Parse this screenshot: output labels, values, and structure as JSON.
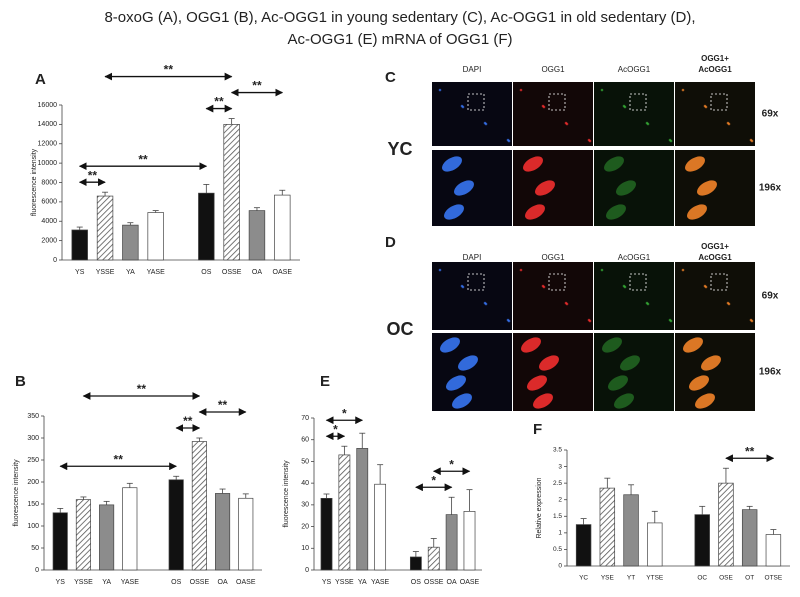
{
  "title_lines": [
    "8-oxoG (A), OGG1 (B), Ac-OGG1 in young sedentary (C), Ac-OGG1 in old sedentary (D),",
    "Ac-OGG1 (E) mRNA of OGG1 (F)"
  ],
  "chart_data": [
    {
      "type": "bar",
      "panel_label": "A",
      "ylabel": "fluorescence intensity",
      "categories": [
        "YS",
        "YSSE",
        "YA",
        "YASE",
        "OS",
        "OSSE",
        "OA",
        "OASE"
      ],
      "values": [
        3100,
        6600,
        3600,
        4900,
        6900,
        14000,
        5100,
        6700
      ],
      "errors": [
        300,
        400,
        250,
        200,
        900,
        600,
        300,
        500
      ],
      "colors": [
        "#111111",
        "#ffffff",
        "#8c8c8c",
        "#ffffff",
        "#111111",
        "#ffffff",
        "#8c8c8c",
        "#ffffff"
      ],
      "hatched": [
        false,
        true,
        false,
        false,
        false,
        true,
        false,
        false
      ],
      "ylim": [
        0,
        16000
      ],
      "yticks": [
        0,
        2000,
        4000,
        6000,
        8000,
        10000,
        12000,
        14000,
        16000
      ],
      "annotations": [
        {
          "text": "**",
          "between": [
            "YS",
            "YSSE"
          ]
        },
        {
          "text": "**",
          "between": [
            "YS",
            "OS"
          ]
        },
        {
          "text": "**",
          "between": [
            "OS",
            "OSSE"
          ]
        },
        {
          "text": "**",
          "between": [
            "OSSE",
            "OASE"
          ]
        },
        {
          "text": "**",
          "between": [
            "YSSE",
            "OSSE"
          ]
        }
      ]
    },
    {
      "type": "bar",
      "panel_label": "B",
      "ylabel": "fluorescence intensity",
      "categories": [
        "YS",
        "YSSE",
        "YA",
        "YASE",
        "OS",
        "OSSE",
        "OA",
        "OASE"
      ],
      "values": [
        130,
        160,
        148,
        187,
        205,
        292,
        174,
        163
      ],
      "errors": [
        10,
        6,
        8,
        10,
        8,
        8,
        10,
        10
      ],
      "colors": [
        "#111111",
        "#ffffff",
        "#8c8c8c",
        "#ffffff",
        "#111111",
        "#ffffff",
        "#8c8c8c",
        "#ffffff"
      ],
      "hatched": [
        false,
        true,
        false,
        false,
        false,
        true,
        false,
        false
      ],
      "ylim": [
        0,
        350
      ],
      "yticks": [
        0,
        50,
        100,
        150,
        200,
        250,
        300,
        350
      ],
      "annotations": [
        {
          "text": "**",
          "between": [
            "YS",
            "OS"
          ]
        },
        {
          "text": "**",
          "between": [
            "OS",
            "OSSE"
          ]
        },
        {
          "text": "**",
          "between": [
            "OSSE",
            "OASE"
          ]
        },
        {
          "text": "**",
          "between": [
            "YSSE",
            "OSSE"
          ]
        }
      ]
    },
    {
      "type": "bar",
      "panel_label": "E",
      "ylabel": "fluorescence intensity",
      "categories": [
        "YS",
        "YSSE",
        "YA",
        "YASE",
        "OS",
        "OSSE",
        "OA",
        "OASE"
      ],
      "values": [
        33,
        53,
        56,
        39.5,
        6,
        10.5,
        25.5,
        27
      ],
      "errors": [
        2,
        4,
        7,
        9,
        2.5,
        4,
        8,
        10
      ],
      "colors": [
        "#111111",
        "#ffffff",
        "#8c8c8c",
        "#ffffff",
        "#111111",
        "#ffffff",
        "#8c8c8c",
        "#ffffff"
      ],
      "hatched": [
        false,
        true,
        false,
        false,
        false,
        true,
        false,
        false
      ],
      "ylim": [
        0,
        70
      ],
      "yticks": [
        0,
        10,
        20,
        30,
        40,
        50,
        60,
        70
      ],
      "annotations": [
        {
          "text": "*",
          "between": [
            "YS",
            "YSSE"
          ]
        },
        {
          "text": "*",
          "between": [
            "YS",
            "YA"
          ]
        },
        {
          "text": "*",
          "between": [
            "OS",
            "OA"
          ]
        },
        {
          "text": "*",
          "between": [
            "OSSE",
            "OASE"
          ]
        }
      ]
    },
    {
      "type": "bar",
      "panel_label": "F",
      "ylabel": "Relative expression",
      "categories": [
        "YC",
        "YSE",
        "YT",
        "YTSE",
        "OC",
        "OSE",
        "OT",
        "OTSE"
      ],
      "values": [
        1.25,
        2.35,
        2.15,
        1.3,
        1.55,
        2.5,
        1.7,
        0.95
      ],
      "errors": [
        0.18,
        0.3,
        0.3,
        0.35,
        0.25,
        0.45,
        0.1,
        0.15
      ],
      "colors": [
        "#111111",
        "#ffffff",
        "#8c8c8c",
        "#ffffff",
        "#111111",
        "#ffffff",
        "#8c8c8c",
        "#ffffff"
      ],
      "hatched": [
        false,
        true,
        false,
        false,
        false,
        true,
        false,
        false
      ],
      "ylim": [
        0,
        3.5
      ],
      "yticks": [
        0,
        0.5,
        1,
        1.5,
        2,
        2.5,
        3,
        3.5
      ],
      "annotations": [
        {
          "text": "**",
          "between": [
            "OSE",
            "OTSE"
          ]
        }
      ]
    }
  ],
  "micrographs": [
    {
      "panel_label": "C",
      "group": "YC",
      "columns": [
        [
          "DAPI"
        ],
        [
          "OGG1"
        ],
        [
          "AcOGG1"
        ],
        [
          "OGG1+",
          "AcOGG1"
        ]
      ],
      "magnifications": [
        "69x",
        "196x"
      ]
    },
    {
      "panel_label": "D",
      "group": "OC",
      "columns": [
        [
          "DAPI"
        ],
        [
          "OGG1"
        ],
        [
          "AcOGG1"
        ],
        [
          "OGG1+",
          "AcOGG1"
        ]
      ],
      "magnifications": [
        "69x",
        "196x"
      ]
    }
  ]
}
